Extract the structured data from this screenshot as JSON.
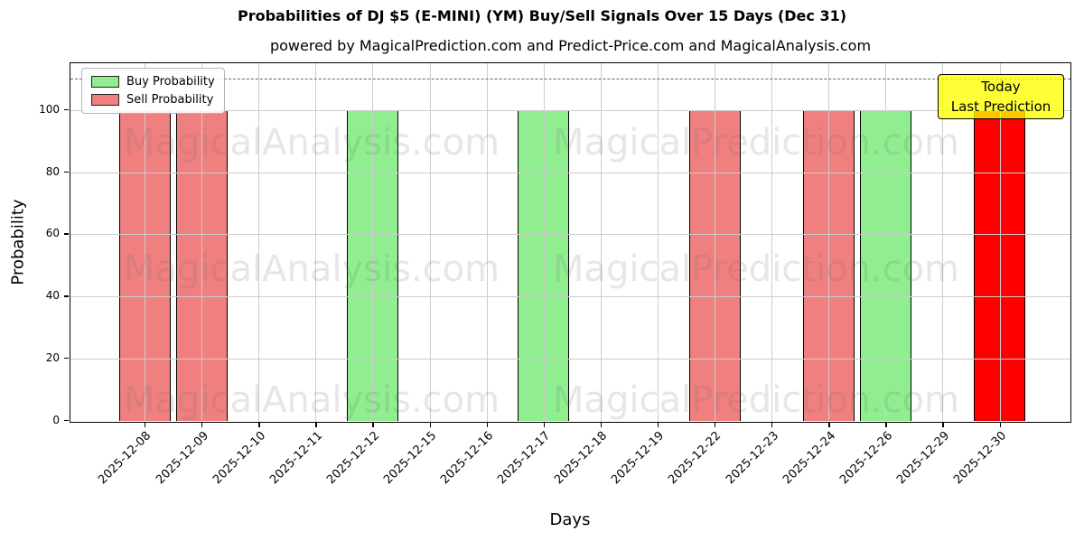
{
  "title": "Probabilities of DJ $5 (E-MINI) (YM) Buy/Sell Signals Over 15 Days (Dec 31)",
  "subtitle": "powered by MagicalPrediction.com and Predict-Price.com and MagicalAnalysis.com",
  "axes": {
    "x_label": "Days",
    "y_label": "Probability"
  },
  "legend": [
    {
      "label": "Buy Probability",
      "color": "#90ee90"
    },
    {
      "label": "Sell Probability",
      "color": "#f08080"
    }
  ],
  "annotation": {
    "line1": "Today",
    "line2": "Last Prediction"
  },
  "watermarks": [
    "MagicalAnalysis.com",
    "MagicalPrediction.com"
  ],
  "colors": {
    "buy": "#90ee90",
    "sell": "#f08080",
    "today": "#ff0000",
    "bar_edge": "#000000",
    "grid": "#cccccc",
    "dashed_line": "#666666",
    "annotation_bg": "#ffff00",
    "legend_border": "#b4b4b4"
  },
  "chart_data": {
    "type": "bar",
    "title": "Probabilities of DJ $5 (E-MINI) (YM) Buy/Sell Signals Over 15 Days (Dec 31)",
    "xlabel": "Days",
    "ylabel": "Probability",
    "categories": [
      "2025-12-08",
      "2025-12-09",
      "2025-12-10",
      "2025-12-11",
      "2025-12-12",
      "2025-12-15",
      "2025-12-16",
      "2025-12-17",
      "2025-12-18",
      "2025-12-19",
      "2025-12-22",
      "2025-12-23",
      "2025-12-24",
      "2025-12-26",
      "2025-12-29",
      "2025-12-30"
    ],
    "signals": [
      "sell",
      "sell",
      "none",
      "none",
      "buy",
      "none",
      "none",
      "buy",
      "none",
      "none",
      "sell",
      "none",
      "sell",
      "buy",
      "none",
      "today"
    ],
    "series": [
      {
        "name": "Buy Probability",
        "values": [
          0,
          0,
          0,
          0,
          100,
          0,
          0,
          100,
          0,
          0,
          0,
          0,
          0,
          100,
          0,
          0
        ]
      },
      {
        "name": "Sell Probability",
        "values": [
          100,
          100,
          0,
          0,
          0,
          0,
          0,
          0,
          0,
          0,
          100,
          0,
          100,
          0,
          0,
          0
        ]
      },
      {
        "name": "Today Last Prediction",
        "values": [
          0,
          0,
          0,
          0,
          0,
          0,
          0,
          0,
          0,
          0,
          0,
          0,
          0,
          0,
          0,
          100
        ]
      }
    ],
    "yticks": [
      0,
      20,
      40,
      60,
      80,
      100
    ],
    "ylim": [
      0,
      115
    ],
    "dashed_line_y": 110,
    "grid": true,
    "legend_position": "upper left",
    "annotation_position": "upper right"
  }
}
